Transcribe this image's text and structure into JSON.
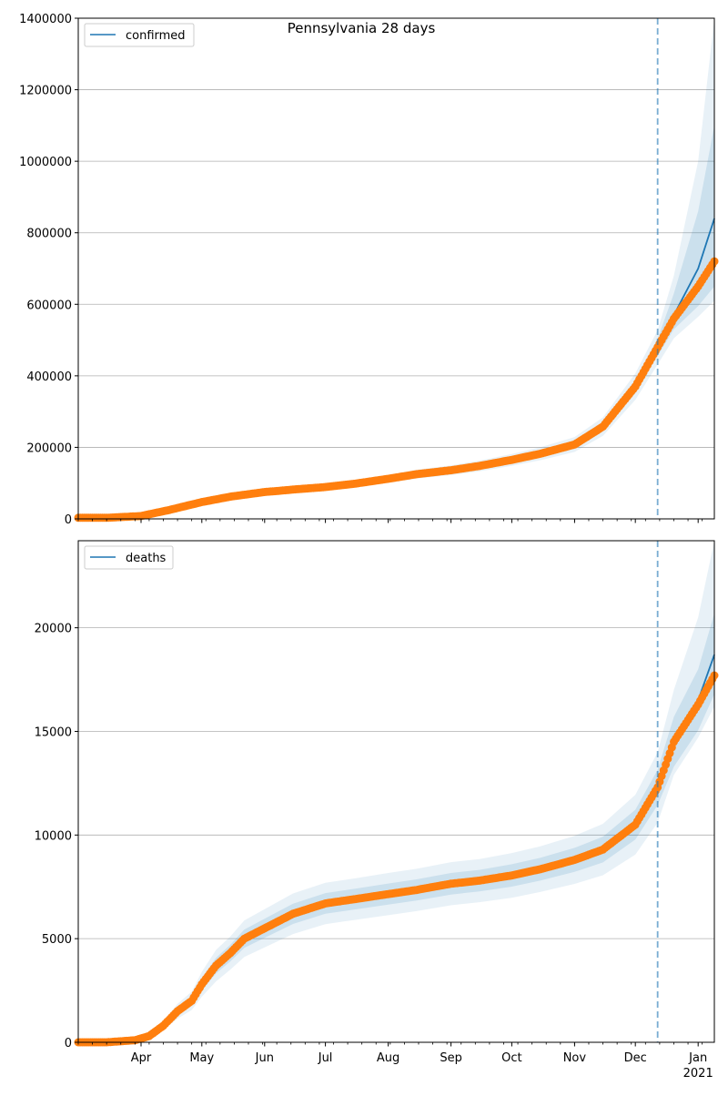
{
  "title": "Pennsylvania 28 days",
  "x_axis": {
    "month_labels": [
      "Apr",
      "May",
      "Jun",
      "Jul",
      "Aug",
      "Sep",
      "Oct",
      "Nov",
      "Dec",
      "Jan"
    ],
    "year_label": "2021"
  },
  "colors": {
    "model_line": "#1f77b4",
    "observed_points": "#ff7f0e",
    "band": "#1f77b4",
    "forecast_marker": "#1f77b4",
    "grid": "#b0b0b0"
  },
  "chart_data": [
    {
      "type": "line",
      "name": "confirmed",
      "legend": "confirmed",
      "legend_position": "top-left",
      "x_range": [
        "2020-03-01",
        "2021-01-09"
      ],
      "ylim": [
        0,
        1400000
      ],
      "y_ticks": [
        0,
        200000,
        400000,
        600000,
        800000,
        1000000,
        1200000,
        1400000
      ],
      "y_tick_labels": [
        "0",
        "200000",
        "400000",
        "600000",
        "800000",
        "1000000",
        "1200000",
        "1400000"
      ],
      "grid": "horizontal",
      "forecast_start": "2020-12-12",
      "model": {
        "x": [
          "2020-03-01",
          "2020-03-15",
          "2020-04-01",
          "2020-04-15",
          "2020-05-01",
          "2020-05-15",
          "2020-06-01",
          "2020-06-15",
          "2020-07-01",
          "2020-07-15",
          "2020-08-01",
          "2020-08-15",
          "2020-09-01",
          "2020-09-15",
          "2020-10-01",
          "2020-10-15",
          "2020-11-01",
          "2020-11-15",
          "2020-12-01",
          "2020-12-12",
          "2020-12-20",
          "2021-01-01",
          "2021-01-09"
        ],
        "y": [
          3000,
          3000,
          8000,
          25000,
          47000,
          62000,
          75000,
          82000,
          89000,
          98000,
          112000,
          125000,
          136000,
          148000,
          165000,
          182000,
          208000,
          258000,
          370000,
          480000,
          570000,
          700000,
          840000
        ],
        "bands": [
          {
            "lower": [
              3000,
              3000,
              7600,
              23800,
              44700,
              58900,
              71300,
              77900,
              84600,
              93100,
              106400,
              118800,
              129200,
              140600,
              156700,
              172900,
              197600,
              245100,
              351500,
              456000,
              530000,
              595000,
              650000
            ],
            "upper": [
              3000,
              3000,
              8400,
              26200,
              49300,
              65100,
              78700,
              86100,
              93400,
              102900,
              117600,
              131200,
              142800,
              155400,
              173300,
              191100,
              218400,
              270900,
              388500,
              504000,
              630000,
              860000,
              1100000
            ]
          },
          {
            "lower": [
              3000,
              3000,
              7200,
              22500,
              42300,
              55800,
              67500,
              73800,
              80100,
              88200,
              100800,
              112500,
              122400,
              133200,
              148500,
              163800,
              187200,
              232200,
              333000,
              432000,
              505000,
              565000,
              610000
            ],
            "upper": [
              3000,
              3000,
              8800,
              27500,
              51700,
              68200,
              82500,
              90200,
              97900,
              107800,
              123200,
              137500,
              149600,
              162800,
              181500,
              200200,
              228800,
              283800,
              407000,
              528000,
              680000,
              1000000,
              1400000
            ]
          }
        ]
      },
      "observed": {
        "x": [
          "2020-03-01",
          "2020-03-15",
          "2020-04-01",
          "2020-04-15",
          "2020-05-01",
          "2020-05-15",
          "2020-06-01",
          "2020-06-15",
          "2020-07-01",
          "2020-07-15",
          "2020-08-01",
          "2020-08-15",
          "2020-09-01",
          "2020-09-15",
          "2020-10-01",
          "2020-10-15",
          "2020-11-01",
          "2020-11-15",
          "2020-12-01",
          "2020-12-12",
          "2020-12-20",
          "2021-01-01",
          "2021-01-09"
        ],
        "y": [
          3000,
          3000,
          8000,
          25000,
          47000,
          62000,
          75000,
          82000,
          89000,
          98000,
          112000,
          125000,
          136000,
          148000,
          165000,
          182000,
          208000,
          258000,
          370000,
          480000,
          560000,
          650000,
          720000
        ]
      }
    },
    {
      "type": "line",
      "name": "deaths",
      "legend": "deaths",
      "legend_position": "top-left",
      "x_range": [
        "2020-03-01",
        "2021-01-09"
      ],
      "ylim": [
        0,
        24200
      ],
      "y_ticks": [
        0,
        5000,
        10000,
        15000,
        20000
      ],
      "y_tick_labels": [
        "0",
        "5000",
        "10000",
        "15000",
        "20000"
      ],
      "grid": "horizontal",
      "forecast_start": "2020-12-12",
      "model": {
        "x": [
          "2020-03-01",
          "2020-03-15",
          "2020-03-29",
          "2020-04-05",
          "2020-04-12",
          "2020-04-19",
          "2020-04-26",
          "2020-05-01",
          "2020-05-08",
          "2020-05-15",
          "2020-05-22",
          "2020-06-01",
          "2020-06-15",
          "2020-07-01",
          "2020-07-15",
          "2020-08-01",
          "2020-08-15",
          "2020-09-01",
          "2020-09-15",
          "2020-10-01",
          "2020-10-15",
          "2020-11-01",
          "2020-11-15",
          "2020-12-01",
          "2020-12-12",
          "2020-12-20",
          "2021-01-01",
          "2021-01-09"
        ],
        "y": [
          0,
          0,
          100,
          300,
          800,
          1500,
          2000,
          2800,
          3700,
          4300,
          5000,
          5500,
          6200,
          6700,
          6900,
          7150,
          7350,
          7650,
          7800,
          8050,
          8350,
          8800,
          9300,
          10500,
          12300,
          14500,
          16500,
          18700
        ],
        "bands": [
          {
            "lower": [
              0,
              0,
              90,
              260,
              700,
              1320,
              1780,
              2500,
              3320,
              3900,
              4560,
              5040,
              5710,
              6200,
              6400,
              6640,
              6840,
              7130,
              7280,
              7510,
              7800,
              8220,
              8680,
              9780,
              11450,
              13300,
              15050,
              16800
            ],
            "upper": [
              0,
              0,
              110,
              340,
              900,
              1680,
              2220,
              3100,
              4080,
              4700,
              5440,
              5960,
              6690,
              7200,
              7400,
              7660,
              7860,
              8170,
              8320,
              8590,
              8900,
              9380,
              9920,
              11220,
              13150,
              15700,
              18000,
              20700
            ]
          },
          {
            "lower": [
              0,
              0,
              80,
              220,
              600,
              1140,
              1560,
              2200,
              2940,
              3500,
              4120,
              4580,
              5220,
              5700,
              5900,
              6130,
              6330,
              6610,
              6760,
              6970,
              7250,
              7640,
              8060,
              9060,
              10600,
              12900,
              14700,
              16200
            ],
            "upper": [
              0,
              0,
              120,
              380,
              1000,
              1860,
              2440,
              3400,
              4460,
              5100,
              5880,
              6420,
              7180,
              7700,
              7900,
              8170,
              8370,
              8690,
              8840,
              9130,
              9450,
              9960,
              10540,
              11940,
              14000,
              17000,
              20500,
              24200
            ]
          }
        ]
      },
      "observed": {
        "x": [
          "2020-03-01",
          "2020-03-15",
          "2020-03-29",
          "2020-04-05",
          "2020-04-12",
          "2020-04-19",
          "2020-04-26",
          "2020-05-01",
          "2020-05-08",
          "2020-05-15",
          "2020-05-22",
          "2020-06-01",
          "2020-06-15",
          "2020-07-01",
          "2020-07-15",
          "2020-08-01",
          "2020-08-15",
          "2020-09-01",
          "2020-09-15",
          "2020-10-01",
          "2020-10-15",
          "2020-11-01",
          "2020-11-15",
          "2020-12-01",
          "2020-12-12",
          "2020-12-20",
          "2021-01-01",
          "2021-01-09"
        ],
        "y": [
          0,
          0,
          100,
          300,
          800,
          1500,
          2000,
          2800,
          3700,
          4300,
          5000,
          5500,
          6200,
          6700,
          6900,
          7150,
          7350,
          7650,
          7800,
          8050,
          8350,
          8800,
          9300,
          10500,
          12300,
          14500,
          16300,
          17700
        ]
      }
    }
  ]
}
